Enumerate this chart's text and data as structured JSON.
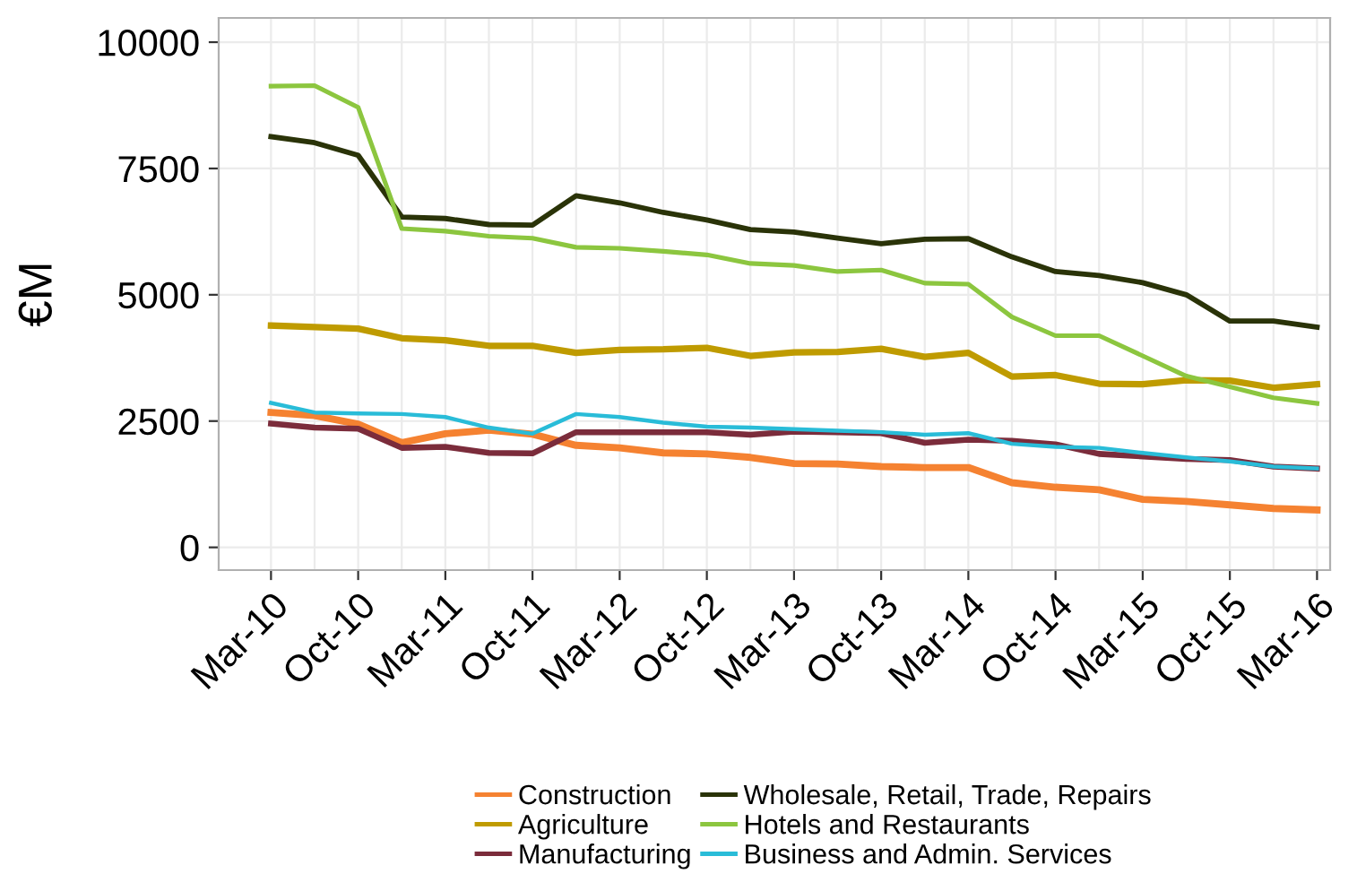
{
  "chart_data": {
    "type": "line",
    "ylabel": "€M",
    "categories": [
      "Mar-10",
      null,
      "Oct-10",
      null,
      "Mar-11",
      null,
      "Oct-11",
      null,
      "Mar-12",
      null,
      "Oct-12",
      null,
      "Mar-13",
      null,
      "Oct-13",
      null,
      "Mar-14",
      null,
      "Oct-14",
      null,
      "Mar-15",
      null,
      "Oct-15",
      null,
      "Mar-16"
    ],
    "series": [
      {
        "name": "Construction",
        "color": "#f58231",
        "values": [
          2670,
          2610,
          2440,
          2070,
          2250,
          2320,
          2240,
          2020,
          1970,
          1870,
          1850,
          1780,
          1660,
          1650,
          1600,
          1580,
          1580,
          1280,
          1190,
          1140,
          950,
          910,
          840,
          770,
          740
        ]
      },
      {
        "name": "Agriculture",
        "color": "#bf9b00",
        "values": [
          4390,
          4360,
          4330,
          4140,
          4100,
          3990,
          3990,
          3850,
          3910,
          3920,
          3950,
          3790,
          3860,
          3870,
          3930,
          3770,
          3850,
          3380,
          3410,
          3240,
          3230,
          3310,
          3300,
          3160,
          3230
        ]
      },
      {
        "name": "Manufacturing",
        "color": "#7b2c3b",
        "values": [
          2450,
          2370,
          2350,
          1970,
          1990,
          1870,
          1860,
          2280,
          2280,
          2280,
          2280,
          2230,
          2290,
          2280,
          2260,
          2070,
          2130,
          2110,
          2040,
          1850,
          1800,
          1750,
          1730,
          1600,
          1560
        ]
      },
      {
        "name": "Wholesale, Retail, Trade, Repairs",
        "color": "#2a3308",
        "values": [
          8130,
          8010,
          7760,
          6540,
          6510,
          6390,
          6380,
          6960,
          6820,
          6630,
          6480,
          6290,
          6240,
          6120,
          6010,
          6100,
          6110,
          5750,
          5460,
          5380,
          5240,
          5000,
          4480,
          4480,
          4360
        ]
      },
      {
        "name": "Hotels and Restaurants",
        "color": "#8cc63f",
        "values": [
          9130,
          9140,
          8710,
          6310,
          6260,
          6160,
          6120,
          5940,
          5920,
          5860,
          5790,
          5620,
          5580,
          5460,
          5490,
          5230,
          5210,
          4560,
          4190,
          4190,
          3790,
          3390,
          3180,
          2960,
          2850
        ]
      },
      {
        "name": "Business and Admin. Services",
        "color": "#29bcd8",
        "values": [
          2860,
          2670,
          2650,
          2640,
          2580,
          2370,
          2250,
          2640,
          2580,
          2470,
          2390,
          2370,
          2340,
          2310,
          2280,
          2230,
          2260,
          2050,
          1990,
          1970,
          1870,
          1780,
          1700,
          1600,
          1560
        ]
      }
    ],
    "ylim": [
      -450,
      10480
    ],
    "yticks": [
      0,
      2500,
      5000,
      7500,
      10000
    ],
    "grid": true,
    "legend": "bottom",
    "marker": "none",
    "line_style": "solid"
  }
}
